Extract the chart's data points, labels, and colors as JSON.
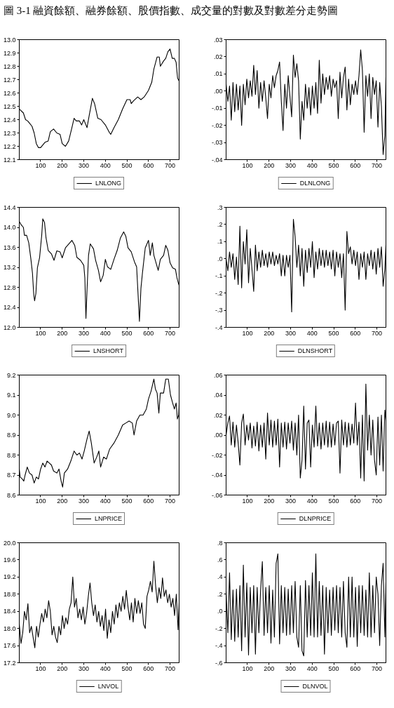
{
  "chart_data": [
    {
      "type": "line",
      "title": "圖 3-1 融資餘額、融券餘額、股價指數、成交量的對數及對數差分走勢圖",
      "x": [
        1,
        20,
        30,
        40,
        50,
        60,
        70,
        80,
        90,
        100,
        110,
        120,
        135,
        145,
        160,
        175,
        190,
        200,
        215,
        230,
        245,
        255,
        265,
        280,
        290,
        300,
        315,
        325,
        340,
        350,
        365,
        380,
        400,
        420,
        425,
        440,
        460,
        480,
        500,
        515,
        520,
        530,
        550,
        565,
        580,
        600,
        615,
        625,
        640,
        650,
        655,
        670,
        680,
        690,
        700,
        710,
        720,
        728,
        735,
        742
      ],
      "series": [
        {
          "name": "LNLONG",
          "color": "#000000",
          "values": [
            12.48,
            12.45,
            12.4,
            12.39,
            12.37,
            12.35,
            12.3,
            12.22,
            12.19,
            12.19,
            12.21,
            12.23,
            12.24,
            12.31,
            12.33,
            12.3,
            12.29,
            12.22,
            12.2,
            12.24,
            12.34,
            12.41,
            12.39,
            12.39,
            12.36,
            12.4,
            12.34,
            12.43,
            12.56,
            12.52,
            12.41,
            12.4,
            12.36,
            12.3,
            12.29,
            12.34,
            12.4,
            12.48,
            12.55,
            12.55,
            12.52,
            12.54,
            12.57,
            12.55,
            12.57,
            12.62,
            12.68,
            12.78,
            12.87,
            12.87,
            12.8,
            12.84,
            12.86,
            12.91,
            12.93,
            12.86,
            12.86,
            12.83,
            12.71,
            12.69
          ]
        }
      ],
      "xlim": [
        1,
        742
      ],
      "xticks": [
        100,
        200,
        300,
        400,
        500,
        600,
        700
      ],
      "ylim": [
        12.1,
        13.0
      ],
      "yticks": [
        {
          "value": 12.1,
          "label": "12.1"
        },
        {
          "value": 12.2,
          "label": "12.2"
        },
        {
          "value": 12.3,
          "label": "12.3"
        },
        {
          "value": 12.4,
          "label": "12.4"
        },
        {
          "value": 12.5,
          "label": "12.5"
        },
        {
          "value": 12.6,
          "label": "12.6"
        },
        {
          "value": 12.7,
          "label": "12.7"
        },
        {
          "value": 12.8,
          "label": "12.8"
        },
        {
          "value": 12.9,
          "label": "12.9"
        },
        {
          "value": 13.0,
          "label": "13.0"
        }
      ],
      "legend": "bottom"
    },
    {
      "type": "line",
      "x": [
        1,
        9,
        17,
        25,
        33,
        41,
        49,
        57,
        65,
        73,
        81,
        89,
        97,
        105,
        113,
        121,
        129,
        137,
        145,
        153,
        161,
        169,
        177,
        185,
        193,
        201,
        209,
        217,
        225,
        233,
        241,
        249,
        257,
        265,
        273,
        281,
        289,
        297,
        305,
        313,
        321,
        329,
        337,
        345,
        353,
        361,
        369,
        377,
        385,
        393,
        401,
        409,
        417,
        425,
        433,
        441,
        449,
        457,
        465,
        473,
        481,
        489,
        497,
        505,
        513,
        521,
        529,
        537,
        545,
        553,
        561,
        569,
        577,
        585,
        593,
        601,
        609,
        617,
        625,
        633,
        641,
        649,
        657,
        665,
        673,
        681,
        689,
        697,
        705,
        713,
        721,
        729,
        737,
        742
      ],
      "series": [
        {
          "name": "DLNLONG",
          "color": "#000000",
          "values": [
            0.004,
            -0.006,
            0.003,
            -0.017,
            0.005,
            -0.012,
            0.004,
            -0.011,
            0.003,
            -0.02,
            0.004,
            -0.008,
            0.007,
            -0.004,
            0.006,
            -0.003,
            0.015,
            -0.002,
            0.012,
            -0.01,
            0.005,
            -0.006,
            0.006,
            -0.004,
            -0.016,
            0.004,
            -0.004,
            0.009,
            0.002,
            0.009,
            0.012,
            0.017,
            -0.006,
            -0.023,
            0.004,
            -0.01,
            0.009,
            -0.003,
            -0.015,
            0.021,
            0.008,
            0.016,
            0.006,
            -0.028,
            -0.006,
            -0.017,
            0.004,
            -0.01,
            0.002,
            -0.014,
            0.003,
            -0.01,
            0.005,
            -0.013,
            0.018,
            -0.007,
            0.01,
            -0.002,
            0.008,
            0.001,
            0.009,
            -0.003,
            0.007,
            0.002,
            0.006,
            -0.016,
            0.011,
            -0.004,
            0.008,
            0.014,
            -0.011,
            0.007,
            -0.008,
            0.004,
            -0.002,
            0.006,
            -0.002,
            0.009,
            0.024,
            0.012,
            -0.024,
            0.009,
            -0.003,
            0.01,
            -0.016,
            0.008,
            -0.002,
            0.006,
            -0.021,
            0.005,
            -0.009,
            -0.037,
            -0.026,
            0.008
          ]
        }
      ],
      "xlim": [
        1,
        742
      ],
      "xticks": [
        100,
        200,
        300,
        400,
        500,
        600,
        700
      ],
      "ylim": [
        -0.04,
        0.03
      ],
      "yticks": [
        {
          "value": -0.04,
          "label": "-.04"
        },
        {
          "value": -0.03,
          "label": "-.03"
        },
        {
          "value": -0.02,
          "label": "-.02"
        },
        {
          "value": -0.01,
          "label": "-.01"
        },
        {
          "value": 0,
          "label": ".00"
        },
        {
          "value": 0.01,
          "label": ".01"
        },
        {
          "value": 0.02,
          "label": ".02"
        },
        {
          "value": 0.03,
          "label": ".03"
        }
      ],
      "legend": "bottom"
    },
    {
      "type": "line",
      "x": [
        1,
        10,
        20,
        25,
        35,
        45,
        55,
        62,
        68,
        72,
        78,
        85,
        95,
        105,
        110,
        118,
        125,
        135,
        150,
        162,
        175,
        190,
        200,
        215,
        235,
        245,
        258,
        268,
        285,
        300,
        305,
        310,
        315,
        322,
        330,
        345,
        355,
        368,
        378,
        390,
        400,
        410,
        425,
        440,
        455,
        470,
        485,
        495,
        505,
        520,
        535,
        545,
        552,
        558,
        565,
        572,
        585,
        600,
        608,
        618,
        625,
        635,
        645,
        655,
        670,
        680,
        690,
        700,
        712,
        725,
        732,
        738,
        742
      ],
      "series": [
        {
          "name": "LNSHORT",
          "color": "#000000",
          "values": [
            14.12,
            14.05,
            14.0,
            13.84,
            13.84,
            13.69,
            13.36,
            13.09,
            12.66,
            12.53,
            12.68,
            13.19,
            13.39,
            13.84,
            14.17,
            14.1,
            13.79,
            13.54,
            13.47,
            13.34,
            13.53,
            13.51,
            13.39,
            13.59,
            13.69,
            13.74,
            13.64,
            13.4,
            13.34,
            13.24,
            12.99,
            12.18,
            12.74,
            13.44,
            13.67,
            13.57,
            13.34,
            13.14,
            12.91,
            13.04,
            13.36,
            13.21,
            13.16,
            13.36,
            13.54,
            13.79,
            13.91,
            13.82,
            13.59,
            13.51,
            13.31,
            13.21,
            12.63,
            12.12,
            12.78,
            13.09,
            13.59,
            13.74,
            13.44,
            13.69,
            13.44,
            13.29,
            13.14,
            13.36,
            13.44,
            13.64,
            13.54,
            13.29,
            13.19,
            13.16,
            12.99,
            12.89,
            12.84
          ]
        }
      ],
      "xlim": [
        1,
        742
      ],
      "xticks": [
        100,
        200,
        300,
        400,
        500,
        600,
        700
      ],
      "ylim": [
        12.0,
        14.4
      ],
      "yticks": [
        {
          "value": 12.0,
          "label": "12.0"
        },
        {
          "value": 12.4,
          "label": "12.4"
        },
        {
          "value": 12.8,
          "label": "12.8"
        },
        {
          "value": 13.2,
          "label": "13.2"
        },
        {
          "value": 13.6,
          "label": "13.6"
        },
        {
          "value": 14.0,
          "label": "14.0"
        },
        {
          "value": 14.4,
          "label": "14.4"
        }
      ],
      "legend": "bottom"
    },
    {
      "type": "line",
      "x": [
        1,
        9,
        17,
        25,
        33,
        41,
        49,
        57,
        65,
        73,
        81,
        89,
        97,
        105,
        113,
        121,
        129,
        137,
        145,
        153,
        161,
        169,
        177,
        185,
        193,
        201,
        209,
        217,
        225,
        233,
        241,
        249,
        257,
        265,
        273,
        281,
        289,
        297,
        305,
        313,
        321,
        329,
        337,
        345,
        353,
        361,
        369,
        377,
        385,
        393,
        401,
        409,
        417,
        425,
        433,
        441,
        449,
        457,
        465,
        473,
        481,
        489,
        497,
        505,
        513,
        521,
        529,
        537,
        545,
        553,
        561,
        569,
        577,
        585,
        593,
        601,
        609,
        617,
        625,
        633,
        641,
        649,
        657,
        665,
        673,
        681,
        689,
        697,
        705,
        713,
        721,
        729,
        737,
        742
      ],
      "series": [
        {
          "name": "DLNSHORT",
          "color": "#000000",
          "values": [
            0.0,
            -0.07,
            0.04,
            -0.05,
            0.03,
            -0.12,
            0.01,
            -0.15,
            0.19,
            -0.17,
            0.1,
            -0.03,
            0.17,
            -0.14,
            0.06,
            -0.06,
            -0.19,
            0.08,
            -0.07,
            0.04,
            -0.05,
            0.05,
            -0.04,
            0.03,
            -0.05,
            0.04,
            -0.03,
            0.04,
            -0.04,
            0.02,
            -0.03,
            0.03,
            -0.1,
            0.02,
            -0.1,
            0.02,
            -0.05,
            0.02,
            -0.31,
            0.23,
            0.13,
            -0.05,
            0.08,
            -0.1,
            0.06,
            -0.16,
            0.05,
            -0.08,
            0.06,
            -0.05,
            0.1,
            -0.11,
            0.04,
            -0.06,
            0.06,
            -0.04,
            0.05,
            -0.05,
            0.05,
            -0.04,
            0.04,
            -0.06,
            0.05,
            -0.1,
            0.04,
            -0.05,
            0.03,
            -0.11,
            0.03,
            -0.3,
            0.16,
            0.03,
            0.07,
            -0.03,
            0.05,
            -0.04,
            0.04,
            -0.12,
            0.03,
            -0.05,
            0.04,
            -0.12,
            0.03,
            -0.04,
            0.05,
            -0.06,
            0.04,
            -0.09,
            0.06,
            -0.05,
            0.07,
            -0.16,
            -0.06,
            0.08
          ]
        }
      ],
      "xlim": [
        1,
        742
      ],
      "xticks": [
        100,
        200,
        300,
        400,
        500,
        600,
        700
      ],
      "ylim": [
        -0.4,
        0.3
      ],
      "yticks": [
        {
          "value": -0.4,
          "label": "-.4"
        },
        {
          "value": -0.3,
          "label": "-.3"
        },
        {
          "value": -0.2,
          "label": "-.2"
        },
        {
          "value": -0.1,
          "label": "-.1"
        },
        {
          "value": 0,
          "label": ".0"
        },
        {
          "value": 0.1,
          "label": ".1"
        },
        {
          "value": 0.2,
          "label": ".2"
        },
        {
          "value": 0.3,
          "label": ".3"
        }
      ],
      "legend": "bottom"
    },
    {
      "type": "line",
      "x": [
        1,
        5,
        15,
        22,
        28,
        38,
        48,
        60,
        70,
        80,
        90,
        100,
        110,
        120,
        130,
        140,
        150,
        160,
        175,
        185,
        195,
        202,
        210,
        225,
        240,
        255,
        268,
        280,
        292,
        302,
        315,
        325,
        335,
        348,
        360,
        370,
        378,
        392,
        405,
        420,
        440,
        460,
        480,
        495,
        510,
        525,
        533,
        545,
        560,
        575,
        590,
        600,
        612,
        625,
        632,
        640,
        648,
        655,
        670,
        680,
        692,
        702,
        712,
        720,
        728,
        734,
        740,
        742
      ],
      "series": [
        {
          "name": "LNPRICE",
          "color": "#000000",
          "values": [
            8.73,
            8.69,
            8.68,
            8.67,
            8.7,
            8.74,
            8.71,
            8.7,
            8.66,
            8.69,
            8.68,
            8.73,
            8.76,
            8.74,
            8.77,
            8.76,
            8.75,
            8.72,
            8.71,
            8.73,
            8.67,
            8.64,
            8.71,
            8.73,
            8.77,
            8.82,
            8.8,
            8.81,
            8.78,
            8.82,
            8.88,
            8.92,
            8.86,
            8.76,
            8.79,
            8.82,
            8.74,
            8.79,
            8.78,
            8.83,
            8.86,
            8.9,
            8.95,
            8.96,
            8.97,
            8.96,
            8.9,
            8.97,
            9.0,
            9.0,
            9.03,
            9.08,
            9.12,
            9.18,
            9.13,
            9.11,
            9.01,
            9.11,
            9.11,
            9.18,
            9.18,
            9.1,
            9.06,
            9.03,
            9.06,
            8.98,
            9.0,
            9.05
          ]
        }
      ],
      "xlim": [
        1,
        742
      ],
      "xticks": [
        100,
        200,
        300,
        400,
        500,
        600,
        700
      ],
      "ylim": [
        8.6,
        9.2
      ],
      "yticks": [
        {
          "value": 8.6,
          "label": "8.6"
        },
        {
          "value": 8.7,
          "label": "8.7"
        },
        {
          "value": 8.8,
          "label": "8.8"
        },
        {
          "value": 8.9,
          "label": "8.9"
        },
        {
          "value": 9.0,
          "label": "9.0"
        },
        {
          "value": 9.1,
          "label": "9.1"
        },
        {
          "value": 9.2,
          "label": "9.2"
        }
      ],
      "legend": "bottom"
    },
    {
      "type": "line",
      "x": [
        1,
        9,
        17,
        25,
        33,
        41,
        49,
        57,
        65,
        73,
        81,
        89,
        97,
        105,
        113,
        121,
        129,
        137,
        145,
        153,
        161,
        169,
        177,
        185,
        193,
        201,
        209,
        217,
        225,
        233,
        241,
        249,
        257,
        265,
        273,
        281,
        289,
        297,
        305,
        313,
        321,
        329,
        337,
        345,
        353,
        361,
        369,
        377,
        385,
        393,
        401,
        409,
        417,
        425,
        433,
        441,
        449,
        457,
        465,
        473,
        481,
        489,
        497,
        505,
        513,
        521,
        529,
        537,
        545,
        553,
        561,
        569,
        577,
        585,
        593,
        601,
        609,
        617,
        625,
        633,
        641,
        649,
        657,
        665,
        673,
        681,
        689,
        697,
        705,
        713,
        721,
        729,
        737,
        742
      ],
      "series": [
        {
          "name": "DLNPRICE",
          "color": "#000000",
          "values": [
            0.0,
            0.012,
            0.019,
            -0.01,
            0.013,
            -0.012,
            0.01,
            -0.008,
            -0.03,
            0.012,
            0.021,
            -0.01,
            0.01,
            -0.005,
            0.012,
            -0.013,
            0.009,
            -0.011,
            0.013,
            -0.016,
            0.01,
            -0.012,
            0.012,
            -0.024,
            0.022,
            -0.01,
            0.015,
            -0.012,
            0.014,
            -0.01,
            0.016,
            -0.032,
            0.012,
            -0.012,
            0.013,
            -0.014,
            0.012,
            -0.008,
            0.014,
            -0.015,
            0.012,
            -0.02,
            0.02,
            -0.043,
            -0.025,
            0.029,
            -0.034,
            0.012,
            0.015,
            -0.032,
            0.01,
            -0.012,
            0.029,
            -0.011,
            0.012,
            -0.014,
            0.012,
            -0.01,
            0.014,
            -0.012,
            0.013,
            -0.012,
            0.011,
            -0.01,
            0.012,
            0.014,
            -0.038,
            0.015,
            -0.01,
            0.013,
            -0.012,
            0.012,
            -0.01,
            0.011,
            -0.008,
            0.032,
            -0.01,
            0.013,
            -0.043,
            0.02,
            -0.046,
            0.051,
            -0.015,
            0.02,
            -0.02,
            0.015,
            -0.025,
            -0.04,
            0.018,
            -0.03,
            0.02,
            -0.036,
            0.025,
            0.015
          ]
        }
      ],
      "xlim": [
        1,
        742
      ],
      "xticks": [
        100,
        200,
        300,
        400,
        500,
        600,
        700
      ],
      "ylim": [
        -0.06,
        0.06
      ],
      "yticks": [
        {
          "value": -0.06,
          "label": "-.06"
        },
        {
          "value": -0.04,
          "label": "-.04"
        },
        {
          "value": -0.02,
          "label": "-.02"
        },
        {
          "value": 0,
          "label": ".00"
        },
        {
          "value": 0.02,
          "label": ".02"
        },
        {
          "value": 0.04,
          "label": ".04"
        },
        {
          "value": 0.06,
          "label": ".06"
        }
      ],
      "legend": "bottom"
    },
    {
      "type": "line",
      "x": [
        1,
        9,
        17,
        25,
        33,
        41,
        49,
        57,
        65,
        73,
        81,
        89,
        97,
        105,
        113,
        121,
        129,
        137,
        145,
        153,
        161,
        169,
        177,
        185,
        193,
        201,
        209,
        217,
        225,
        233,
        241,
        249,
        257,
        265,
        273,
        281,
        289,
        297,
        305,
        313,
        321,
        329,
        337,
        345,
        353,
        361,
        369,
        377,
        385,
        393,
        401,
        409,
        417,
        425,
        433,
        441,
        449,
        457,
        465,
        473,
        481,
        489,
        497,
        505,
        513,
        521,
        529,
        537,
        545,
        553,
        561,
        569,
        577,
        585,
        593,
        601,
        609,
        617,
        625,
        633,
        641,
        649,
        657,
        665,
        673,
        681,
        689,
        697,
        705,
        713,
        721,
        729,
        737,
        742
      ],
      "series": [
        {
          "name": "LNVOL",
          "color": "#000000",
          "values": [
            18.1,
            17.65,
            17.9,
            18.4,
            18.2,
            18.58,
            17.9,
            18.05,
            17.8,
            17.55,
            18.05,
            17.8,
            18.1,
            18.35,
            18.15,
            18.45,
            18.25,
            18.65,
            18.4,
            17.85,
            18.05,
            17.8,
            17.67,
            18.05,
            17.85,
            18.3,
            18.0,
            18.25,
            18.1,
            18.45,
            18.6,
            19.2,
            18.5,
            18.7,
            18.25,
            18.45,
            18.2,
            18.5,
            18.1,
            18.35,
            18.75,
            19.06,
            18.6,
            18.3,
            18.55,
            18.15,
            18.4,
            18.05,
            18.3,
            17.95,
            18.45,
            17.77,
            18.2,
            17.9,
            18.4,
            18.1,
            18.55,
            18.25,
            18.6,
            18.4,
            18.75,
            18.45,
            18.89,
            18.5,
            18.2,
            18.6,
            18.15,
            18.7,
            18.35,
            18.65,
            18.35,
            18.6,
            18.1,
            18.0,
            18.75,
            18.9,
            19.1,
            18.85,
            19.57,
            19.0,
            18.6,
            18.95,
            18.7,
            19.18,
            18.75,
            18.9,
            18.6,
            18.8,
            18.5,
            18.7,
            18.3,
            18.8,
            17.97,
            18.6
          ]
        }
      ],
      "xlim": [
        1,
        742
      ],
      "xticks": [
        100,
        200,
        300,
        400,
        500,
        600,
        700
      ],
      "ylim": [
        17.2,
        20.0
      ],
      "yticks": [
        {
          "value": 17.2,
          "label": "17.2"
        },
        {
          "value": 17.6,
          "label": "17.6"
        },
        {
          "value": 18.0,
          "label": "18.0"
        },
        {
          "value": 18.4,
          "label": "18.4"
        },
        {
          "value": 18.8,
          "label": "18.8"
        },
        {
          "value": 19.2,
          "label": "19.2"
        },
        {
          "value": 19.6,
          "label": "19.6"
        },
        {
          "value": 20.0,
          "label": "20.0"
        }
      ],
      "legend": "bottom"
    },
    {
      "type": "line",
      "x": [
        1,
        9,
        17,
        25,
        33,
        41,
        49,
        57,
        65,
        73,
        81,
        89,
        97,
        105,
        113,
        121,
        129,
        137,
        145,
        153,
        161,
        169,
        177,
        185,
        193,
        201,
        209,
        217,
        225,
        233,
        241,
        249,
        257,
        265,
        273,
        281,
        289,
        297,
        305,
        313,
        321,
        329,
        337,
        345,
        353,
        361,
        369,
        377,
        385,
        393,
        401,
        409,
        417,
        425,
        433,
        441,
        449,
        457,
        465,
        473,
        481,
        489,
        497,
        505,
        513,
        521,
        529,
        537,
        545,
        553,
        561,
        569,
        577,
        585,
        593,
        601,
        609,
        617,
        625,
        633,
        641,
        649,
        657,
        665,
        673,
        681,
        689,
        697,
        705,
        713,
        721,
        729,
        737,
        742
      ],
      "series": [
        {
          "name": "DLNVOL",
          "color": "#000000",
          "values": [
            0.23,
            -0.25,
            0.45,
            -0.33,
            0.25,
            -0.35,
            0.26,
            -0.3,
            0.3,
            -0.46,
            0.54,
            -0.3,
            0.33,
            -0.51,
            0.28,
            -0.25,
            0.3,
            -0.5,
            0.28,
            -0.25,
            0.25,
            0.58,
            -0.28,
            0.28,
            -0.25,
            0.3,
            -0.37,
            0.25,
            -0.3,
            0.56,
            0.67,
            -0.38,
            0.3,
            -0.25,
            0.28,
            -0.28,
            0.26,
            -0.27,
            0.3,
            -0.25,
            0.35,
            -0.3,
            -0.42,
            0.3,
            -0.46,
            -0.52,
            0.36,
            -0.3,
            0.3,
            -0.28,
            0.45,
            -0.3,
            0.67,
            -0.3,
            0.35,
            -0.28,
            0.3,
            -0.5,
            0.28,
            -0.25,
            0.25,
            -0.28,
            0.28,
            -0.22,
            0.3,
            -0.25,
            0.28,
            -0.3,
            0.35,
            -0.25,
            -0.42,
            0.4,
            -0.3,
            0.4,
            -0.3,
            0.28,
            -0.41,
            0.3,
            -0.25,
            0.3,
            -0.28,
            0.25,
            -0.3,
            0.45,
            -0.3,
            0.3,
            -0.25,
            0.4,
            0.2,
            -0.4,
            0.3,
            0.56,
            -0.3,
            0.34
          ]
        }
      ],
      "xlim": [
        1,
        742
      ],
      "xticks": [
        100,
        200,
        300,
        400,
        500,
        600,
        700
      ],
      "ylim": [
        -0.6,
        0.8
      ],
      "yticks": [
        {
          "value": -0.6,
          "label": "-.6"
        },
        {
          "value": -0.4,
          "label": "-.4"
        },
        {
          "value": -0.2,
          "label": "-.2"
        },
        {
          "value": 0,
          "label": ".0"
        },
        {
          "value": 0.2,
          "label": ".2"
        },
        {
          "value": 0.4,
          "label": ".4"
        },
        {
          "value": 0.6,
          "label": ".6"
        },
        {
          "value": 0.8,
          "label": ".8"
        }
      ],
      "legend": "bottom"
    }
  ]
}
